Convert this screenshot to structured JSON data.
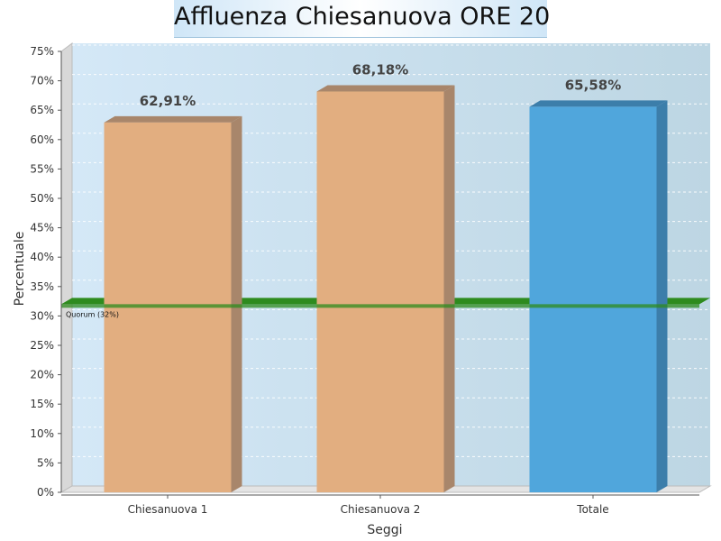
{
  "chart_data": {
    "type": "bar",
    "title": "Affluenza Chiesanuova ORE 20",
    "xlabel": "Seggi",
    "ylabel": "Percentuale",
    "categories": [
      "Chiesanuova 1",
      "Chiesanuova 2",
      "Totale"
    ],
    "values": [
      62.91,
      68.18,
      65.58
    ],
    "value_labels": [
      "62,91%",
      "68,18%",
      "65,58%"
    ],
    "bar_colors": [
      "#e2ae80",
      "#e2ae80",
      "#50a6dc"
    ],
    "bar_side_colors": [
      "#a8866b",
      "#a8866b",
      "#3c7eaa"
    ],
    "ylim": [
      0,
      75
    ],
    "yticks": [
      "0%",
      "5%",
      "10%",
      "15%",
      "20%",
      "25%",
      "30%",
      "35%",
      "40%",
      "45%",
      "50%",
      "55%",
      "60%",
      "65%",
      "70%",
      "75%"
    ],
    "grid": true,
    "legend": "none",
    "threshold": {
      "value": 32,
      "label": "Quorum (32%)",
      "color": "#2e8b1e"
    }
  }
}
